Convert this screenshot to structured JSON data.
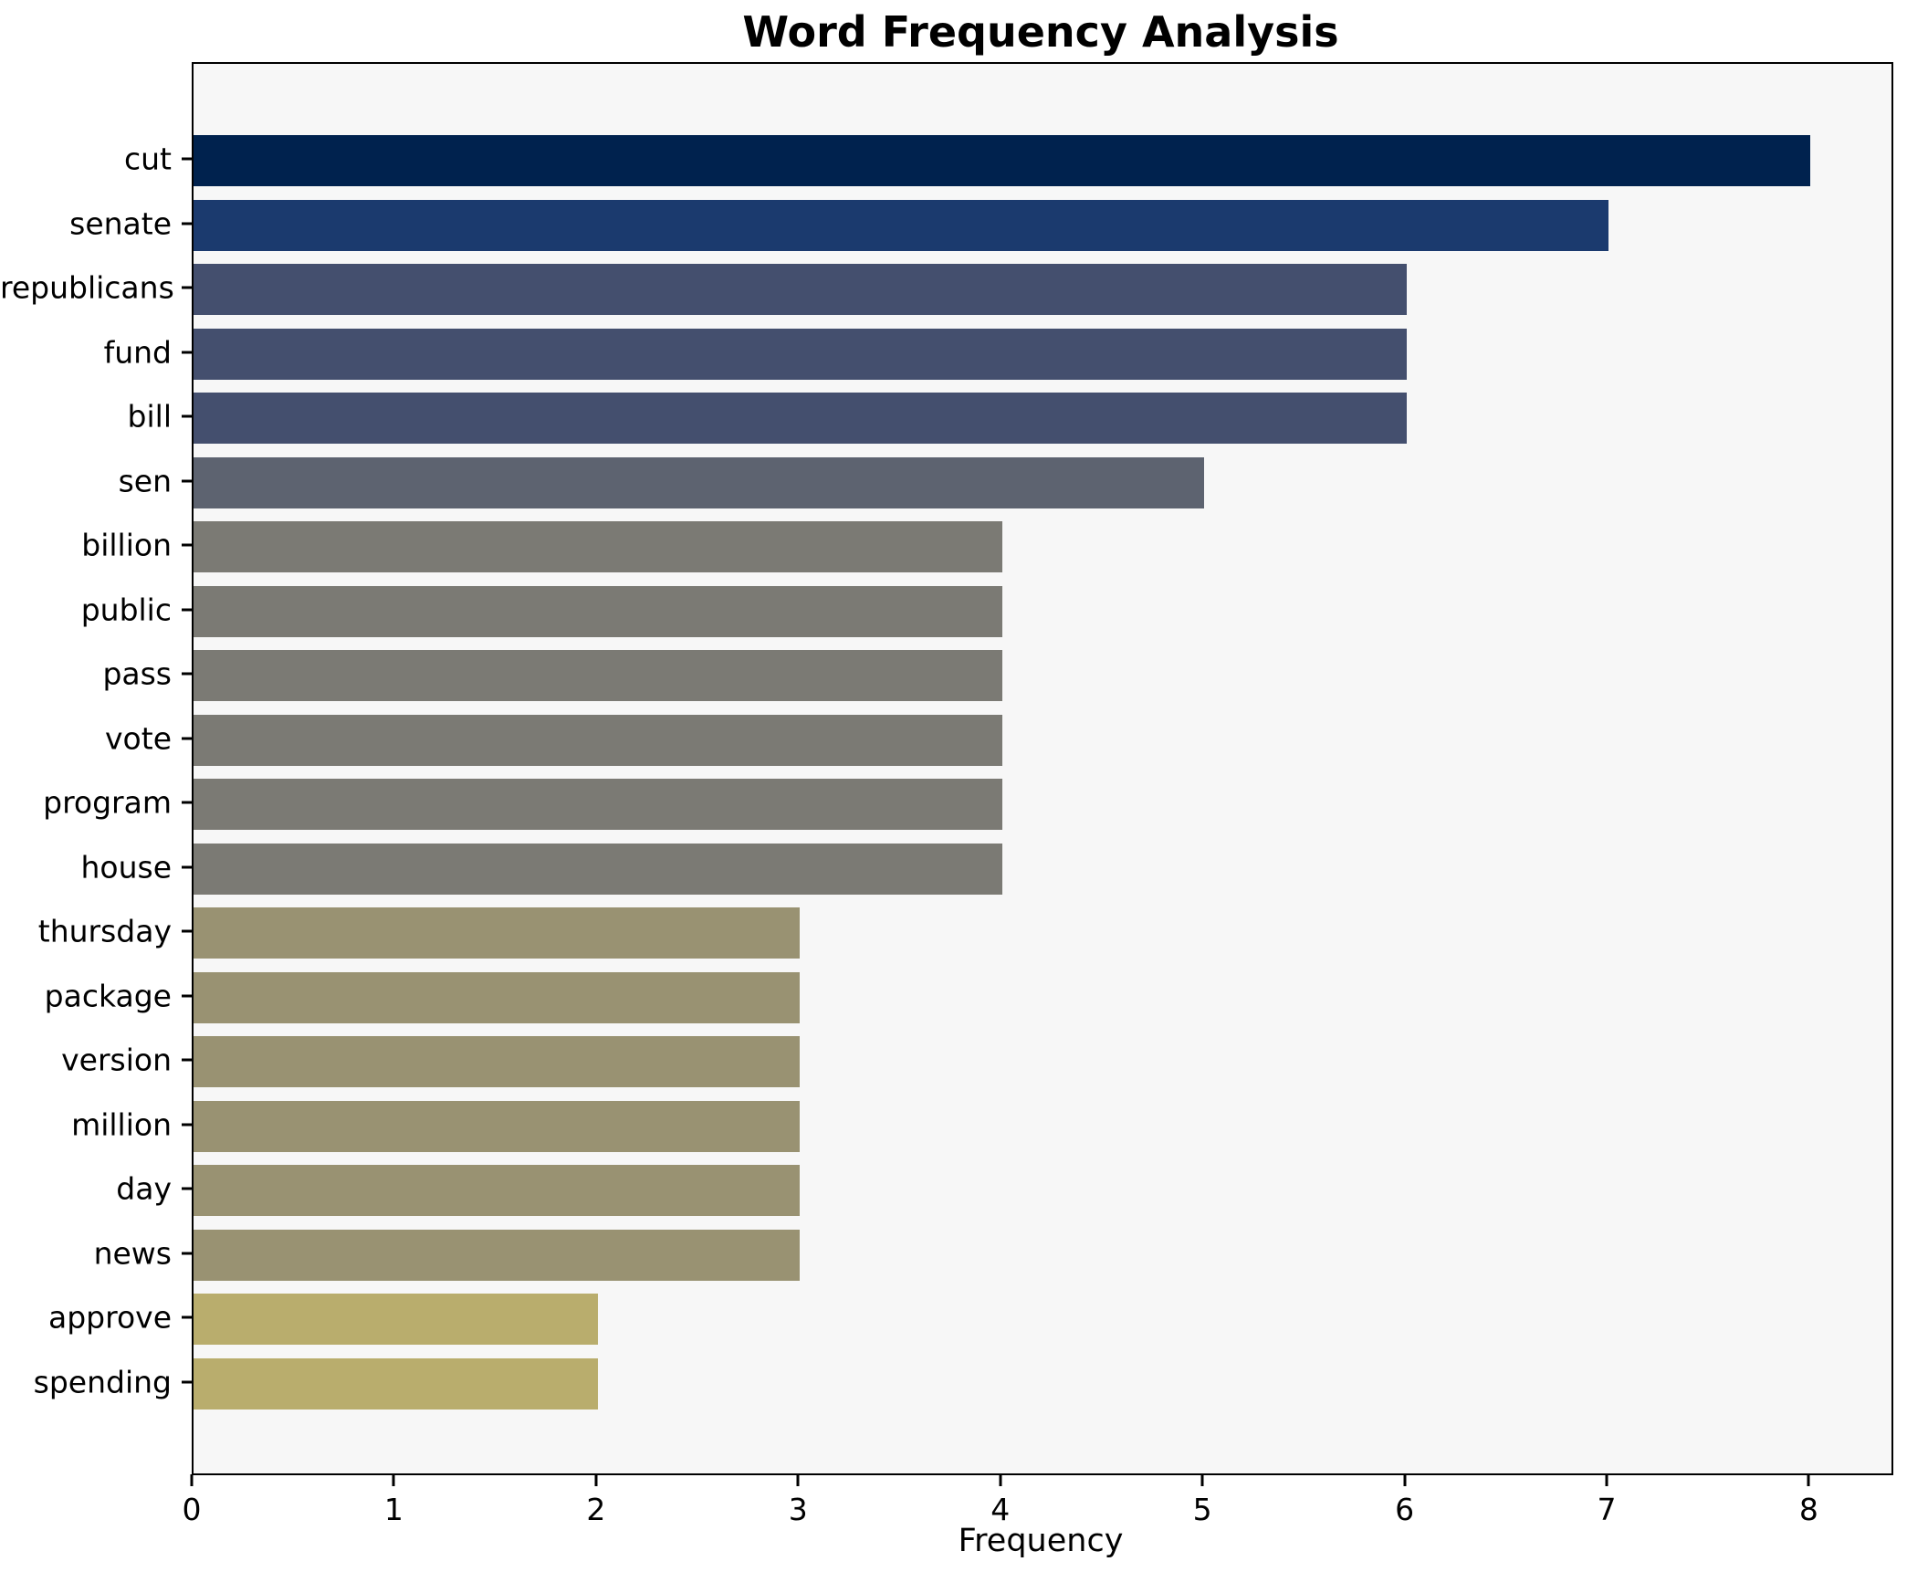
{
  "title": "Word Frequency Analysis",
  "chart_data": {
    "type": "bar",
    "orientation": "horizontal",
    "title": "Word Frequency Analysis",
    "xlabel": "Frequency",
    "ylabel": "",
    "xlim": [
      0,
      8.4
    ],
    "xticks": [
      "0",
      "1",
      "2",
      "3",
      "4",
      "5",
      "6",
      "7",
      "8"
    ],
    "xtick_values": [
      0,
      1,
      2,
      3,
      4,
      5,
      6,
      7,
      8
    ],
    "grid": false,
    "legend": "none",
    "plot_background": "#f7f7f7",
    "figure_background": "#ffffff",
    "categories": [
      "cut",
      "senate",
      "republicans",
      "fund",
      "bill",
      "sen",
      "billion",
      "public",
      "pass",
      "vote",
      "program",
      "house",
      "thursday",
      "package",
      "version",
      "million",
      "day",
      "news",
      "approve",
      "spending"
    ],
    "values": [
      8,
      7,
      6,
      6,
      6,
      5,
      4,
      4,
      4,
      4,
      4,
      4,
      3,
      3,
      3,
      3,
      3,
      3,
      2,
      2
    ],
    "bar_colors": [
      "#00224e",
      "#1b3a6e",
      "#444f6e",
      "#444f6e",
      "#444f6e",
      "#5d6370",
      "#7b7a74",
      "#7b7a74",
      "#7b7a74",
      "#7b7a74",
      "#7b7a74",
      "#7b7a74",
      "#999272",
      "#999272",
      "#999272",
      "#999272",
      "#999272",
      "#999272",
      "#b9ad6d",
      "#b9ad6d"
    ]
  }
}
